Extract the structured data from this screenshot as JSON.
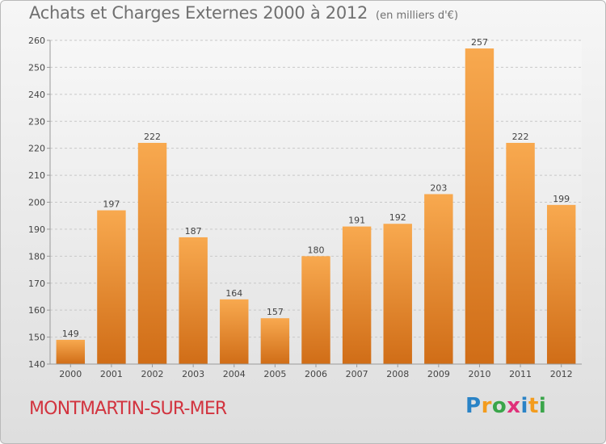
{
  "title": "Achats et Charges Externes 2000 à 2012",
  "subtitle": "(en milliers d'€)",
  "commune": "MONTMARTIN-SUR-MER",
  "logo": {
    "letters": [
      "P",
      "r",
      "o",
      "x",
      "i",
      "t",
      "i"
    ],
    "colors": [
      "#2a83c6",
      "#f39c1e",
      "#3aa54a",
      "#e0317a",
      "#2a83c6",
      "#f39c1e",
      "#3aa54a"
    ]
  },
  "colors": {
    "bar_top": "#f8a94f",
    "bar_bottom": "#d06d17",
    "label": "#444444",
    "commune": "#d2343f"
  },
  "chart_data": {
    "type": "bar",
    "categories": [
      "2000",
      "2001",
      "2002",
      "2003",
      "2004",
      "2005",
      "2006",
      "2007",
      "2008",
      "2009",
      "2010",
      "2011",
      "2012"
    ],
    "values": [
      149,
      197,
      222,
      187,
      164,
      157,
      180,
      191,
      192,
      203,
      257,
      222,
      199
    ],
    "ylim": [
      140,
      260
    ],
    "yticks": [
      140,
      150,
      160,
      170,
      180,
      190,
      200,
      210,
      220,
      230,
      240,
      250,
      260
    ],
    "grid": true,
    "data_labels": true
  }
}
